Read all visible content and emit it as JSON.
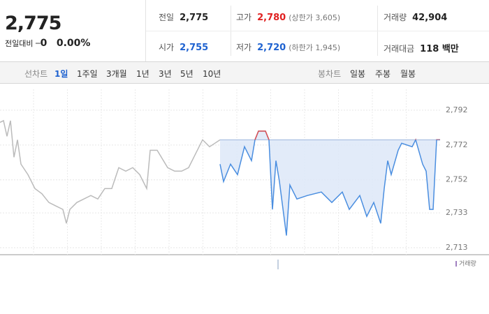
{
  "quote": {
    "price": "2,775",
    "change_label": "전일대비",
    "change": "0",
    "change_rate": "0.00%"
  },
  "stats": [
    {
      "label": "전일",
      "value": "2,775"
    },
    {
      "label": "고가",
      "value": "2,780",
      "note": "(상한가 3,605)"
    },
    {
      "label": "거래량",
      "value": "42,904"
    },
    {
      "label": "시가",
      "value": "2,755"
    },
    {
      "label": "저가",
      "value": "2,720",
      "note": "(하한가 1,945)"
    },
    {
      "label": "거래대금",
      "value": "118 백만"
    }
  ],
  "tabs": {
    "line_chart": "선차트",
    "periods": [
      "1일",
      "1주일",
      "3개월",
      "1년",
      "3년",
      "5년",
      "10년"
    ],
    "candle_chart": "봉차트",
    "candle_periods": [
      "일봉",
      "주봉",
      "월봉"
    ]
  },
  "chart_data": {
    "type": "line",
    "xlim": [
      0,
      126
    ],
    "ylim": [
      2709,
      2804
    ],
    "yticks": [
      {
        "value": 2792,
        "label": "2,792"
      },
      {
        "value": 2772,
        "label": "2,772"
      },
      {
        "value": 2752,
        "label": "2,752"
      },
      {
        "value": 2733,
        "label": "2,733"
      },
      {
        "value": 2713,
        "label": "2,713"
      }
    ],
    "baseline": 2775,
    "grid": true,
    "volume_label": "거래량",
    "series": [
      {
        "color": "#bbbbbb",
        "x": [
          0,
          1,
          2,
          3,
          4,
          5,
          6,
          8,
          10,
          12,
          14,
          16,
          18,
          19,
          20,
          22,
          24,
          26,
          28,
          30,
          32,
          34,
          36,
          38,
          40,
          42,
          43,
          45,
          48,
          50,
          52,
          54,
          56,
          58,
          60,
          63
        ],
        "values": [
          2785,
          2786,
          2777,
          2786,
          2765,
          2775,
          2761,
          2755,
          2747,
          2744,
          2739,
          2737,
          2735,
          2727,
          2735,
          2739,
          2741,
          2743,
          2741,
          2747,
          2747,
          2759,
          2757,
          2759,
          2755,
          2747,
          2769,
          2769,
          2759,
          2757,
          2757,
          2759,
          2767,
          2775,
          2771,
          2775
        ]
      },
      {
        "color": "#4a8ee0",
        "up_color": "#e05050",
        "fill": "#dde8f8",
        "x": [
          63,
          64,
          66,
          68,
          70,
          72,
          73,
          74,
          76,
          77,
          78,
          79,
          80,
          82,
          83,
          85,
          88,
          92,
          95,
          98,
          100,
          103,
          105,
          107,
          109,
          110,
          111,
          112,
          114,
          115,
          118,
          119,
          121,
          122,
          123,
          124,
          125,
          126
        ],
        "values": [
          2761,
          2751,
          2761,
          2755,
          2771,
          2763,
          2775,
          2780,
          2780,
          2775,
          2735,
          2763,
          2751,
          2720,
          2749,
          2741,
          2743,
          2745,
          2739,
          2745,
          2735,
          2743,
          2731,
          2739,
          2727,
          2747,
          2763,
          2755,
          2769,
          2773,
          2771,
          2775,
          2761,
          2757,
          2735,
          2735,
          2775,
          2775
        ]
      }
    ]
  }
}
